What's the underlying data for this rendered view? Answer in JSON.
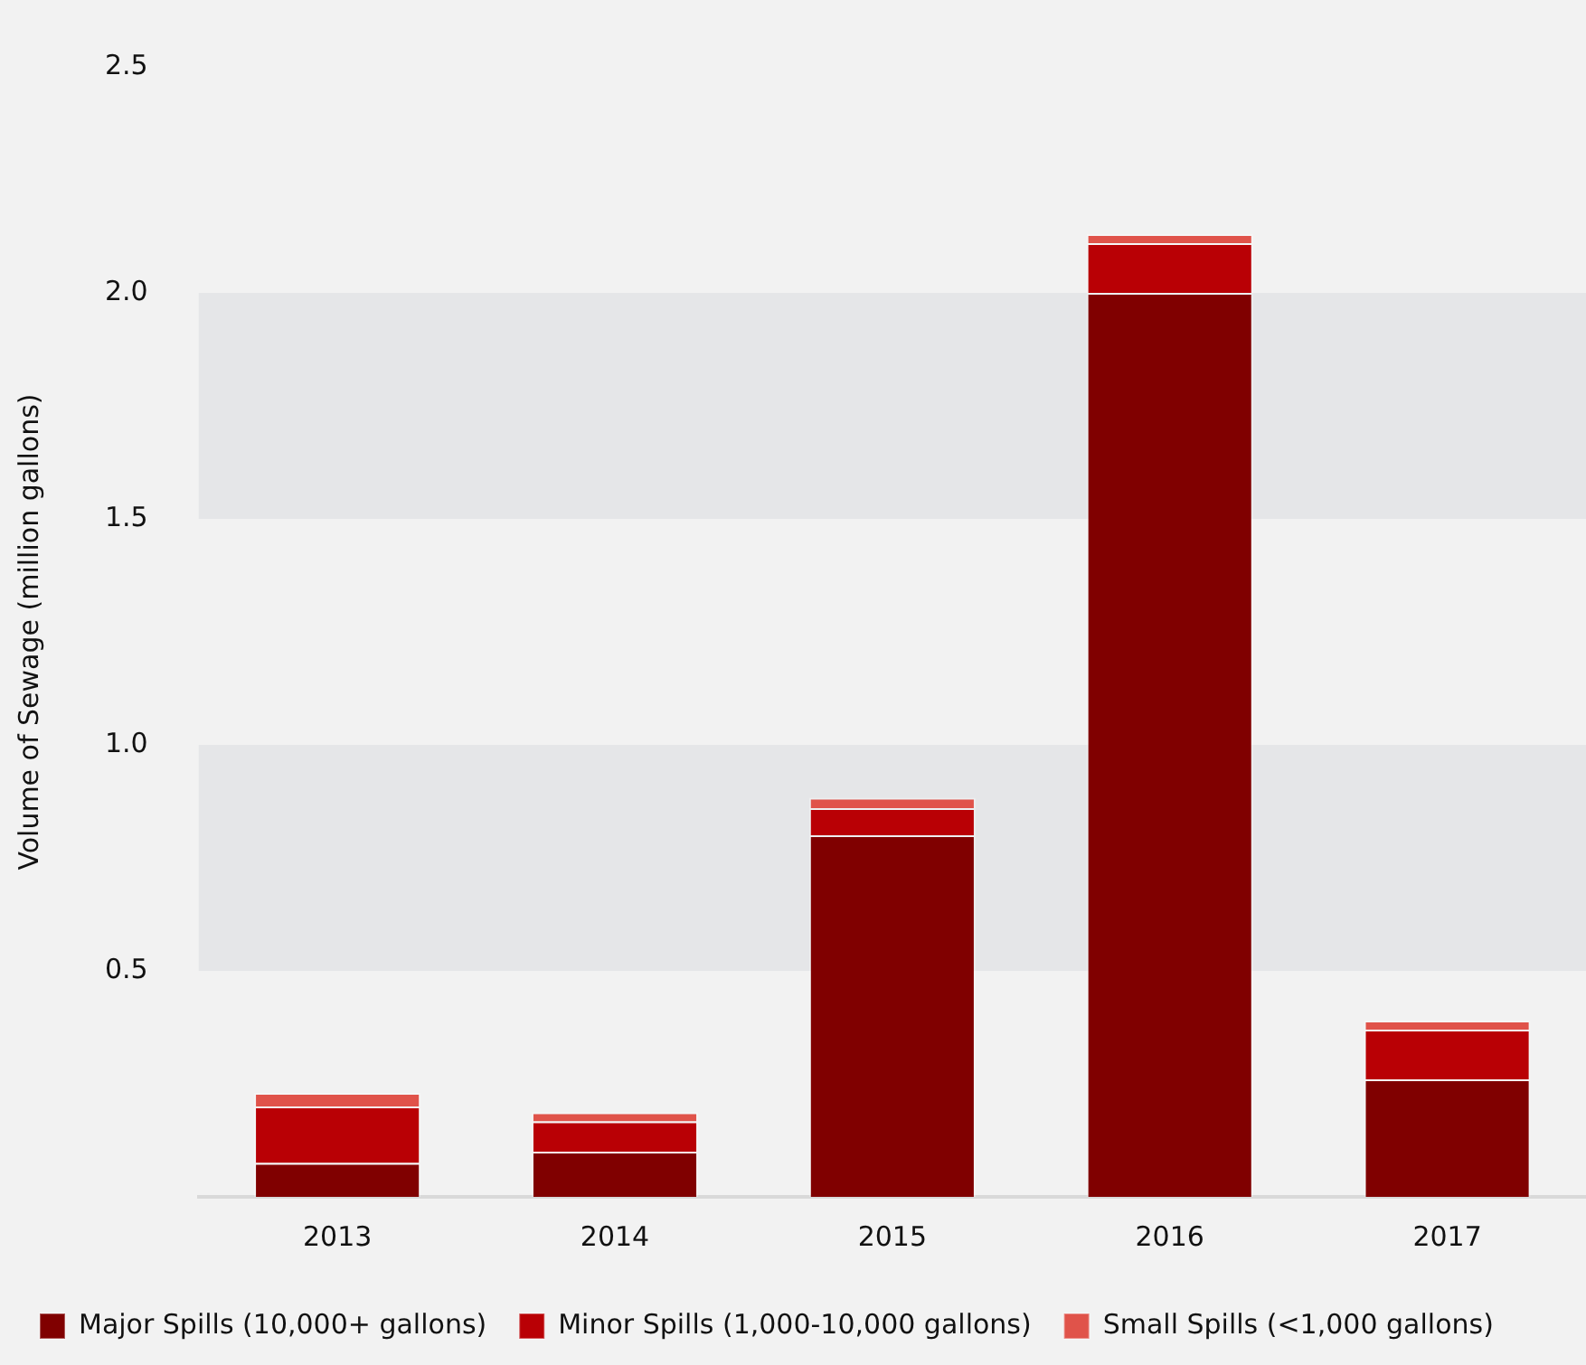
{
  "chart_data": {
    "type": "bar",
    "stacked": true,
    "ylabel": "Volume of Sewage (million gallons)",
    "categories": [
      "2013",
      "2014",
      "2015",
      "2016",
      "2017"
    ],
    "series": [
      {
        "name": "Major Spills (10,000+ gallons)",
        "color": "#800000",
        "values": [
          0.075,
          0.1,
          0.8,
          2.0,
          0.26
        ]
      },
      {
        "name": "Minor Spills (1,000-10,000 gallons)",
        "color": "#b90005",
        "values": [
          0.125,
          0.067,
          0.06,
          0.11,
          0.11
        ]
      },
      {
        "name": "Small Spills (<1,000 gallons)",
        "color": "#e0534a",
        "values": [
          0.03,
          0.02,
          0.023,
          0.02,
          0.02
        ]
      }
    ],
    "ylim": [
      0,
      2.5
    ],
    "yticks": [
      0.5,
      {
        "value": 1,
        "label": "1.0"
      },
      1.5,
      {
        "value": 2,
        "label": "2.0"
      },
      2.5
    ],
    "grid": false,
    "legend": "bottom",
    "bands": [
      {
        "axis": "y",
        "from": 0.5,
        "to": 1.0,
        "color": "#e5e6e8"
      },
      {
        "axis": "y",
        "from": 1.5,
        "to": 2.0,
        "color": "#e5e6e8"
      }
    ]
  }
}
